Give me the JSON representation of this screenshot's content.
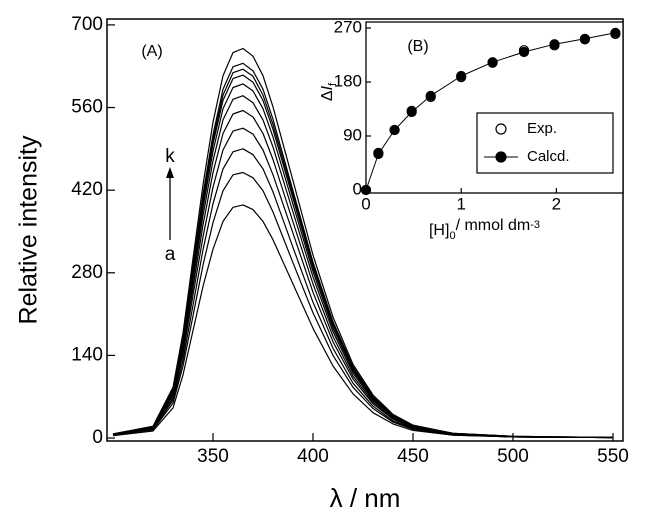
{
  "chart_data": [
    {
      "type": "line",
      "xlabel": "λ / nm",
      "ylabel": "Relative intensity",
      "annotations": [
        "(A)",
        "k",
        "a"
      ],
      "x": [
        300,
        320,
        330,
        335,
        340,
        345,
        350,
        355,
        360,
        365,
        370,
        375,
        380,
        390,
        400,
        410,
        420,
        430,
        440,
        450,
        470,
        500,
        550
      ],
      "xlim": [
        297,
        555
      ],
      "xticks": [
        350,
        400,
        450,
        500,
        550
      ],
      "ylim": [
        -5,
        710
      ],
      "yticks": [
        0,
        140,
        280,
        420,
        560,
        700
      ],
      "series": [
        {
          "color": "#000000",
          "values": [
            4,
            12,
            51,
            107,
            182,
            257,
            320,
            367,
            391,
            395,
            387,
            367,
            336,
            261,
            186,
            122,
            75,
            43,
            24,
            13,
            5,
            2,
            1
          ]
        },
        {
          "color": "#000000",
          "values": [
            5,
            14,
            59,
            122,
            207,
            293,
            365,
            419,
            446,
            450,
            441,
            419,
            383,
            297,
            212,
            140,
            86,
            50,
            27,
            15,
            5,
            2,
            1
          ]
        },
        {
          "color": "#000000",
          "values": [
            5,
            15,
            64,
            132,
            225,
            319,
            397,
            456,
            485,
            490,
            480,
            456,
            417,
            323,
            230,
            152,
            93,
            54,
            29,
            16,
            6,
            2,
            1
          ]
        },
        {
          "color": "#000000",
          "values": [
            5,
            16,
            68,
            142,
            242,
            341,
            425,
            488,
            520,
            525,
            515,
            488,
            446,
            347,
            247,
            163,
            100,
            58,
            32,
            17,
            6,
            2,
            1
          ]
        },
        {
          "color": "#000000",
          "values": [
            6,
            17,
            72,
            150,
            255,
            361,
            450,
            516,
            549,
            555,
            544,
            516,
            472,
            366,
            261,
            172,
            105,
            61,
            33,
            18,
            7,
            2,
            1
          ]
        },
        {
          "color": "#000000",
          "values": [
            6,
            17,
            75,
            157,
            267,
            377,
            470,
            539,
            574,
            580,
            568,
            539,
            493,
            383,
            273,
            180,
            110,
            64,
            35,
            19,
            7,
            2,
            1
          ]
        },
        {
          "color": "#000000",
          "values": [
            6,
            18,
            78,
            162,
            276,
            390,
            486,
            558,
            594,
            600,
            588,
            558,
            510,
            396,
            282,
            186,
            114,
            66,
            36,
            20,
            7,
            2,
            1
          ]
        },
        {
          "color": "#000000",
          "values": [
            6,
            18,
            80,
            166,
            283,
            400,
            498,
            572,
            609,
            615,
            603,
            572,
            523,
            406,
            289,
            191,
            117,
            68,
            37,
            20,
            7,
            2,
            1
          ]
        },
        {
          "color": "#000000",
          "values": [
            6,
            19,
            81,
            169,
            288,
            406,
            506,
            581,
            619,
            625,
            613,
            581,
            531,
            413,
            294,
            194,
            119,
            69,
            38,
            21,
            8,
            3,
            1
          ]
        },
        {
          "color": "#000000",
          "values": [
            6,
            19,
            83,
            171,
            292,
            413,
            514,
            591,
            629,
            635,
            622,
            591,
            540,
            419,
            298,
            197,
            121,
            70,
            38,
            21,
            8,
            3,
            1
          ]
        },
        {
          "color": "#000000",
          "values": [
            7,
            20,
            86,
            178,
            304,
            429,
            535,
            614,
            653,
            660,
            647,
            614,
            561,
            436,
            310,
            205,
            125,
            73,
            40,
            22,
            8,
            3,
            1
          ]
        }
      ]
    },
    {
      "type": "line",
      "xlabel": [
        "[H]",
        "0",
        "/ mmol dm",
        "-3"
      ],
      "ylabel": [
        "Δ",
        "I",
        "f"
      ],
      "annotations": [
        "(B)"
      ],
      "x": [
        0,
        0.13,
        0.3,
        0.48,
        0.68,
        1.0,
        1.33,
        1.66,
        1.98,
        2.3,
        2.62
      ],
      "xlim": [
        0,
        2.7
      ],
      "xticks": [
        0,
        1,
        2
      ],
      "ylim": [
        -5,
        280
      ],
      "yticks": [
        0,
        90,
        180,
        270
      ],
      "legend": "lower right",
      "series": [
        {
          "name": "Exp.",
          "color": "#000000",
          "marker": "open",
          "line": false,
          "values": [
            0,
            62,
            100,
            132,
            155,
            188,
            212,
            233,
            241,
            251,
            260
          ]
        },
        {
          "name": "Calcd.",
          "color": "#000000",
          "marker": "filled",
          "line": true,
          "values": [
            0,
            60,
            100,
            130,
            157,
            190,
            213,
            230,
            243,
            252,
            262
          ]
        }
      ]
    }
  ]
}
